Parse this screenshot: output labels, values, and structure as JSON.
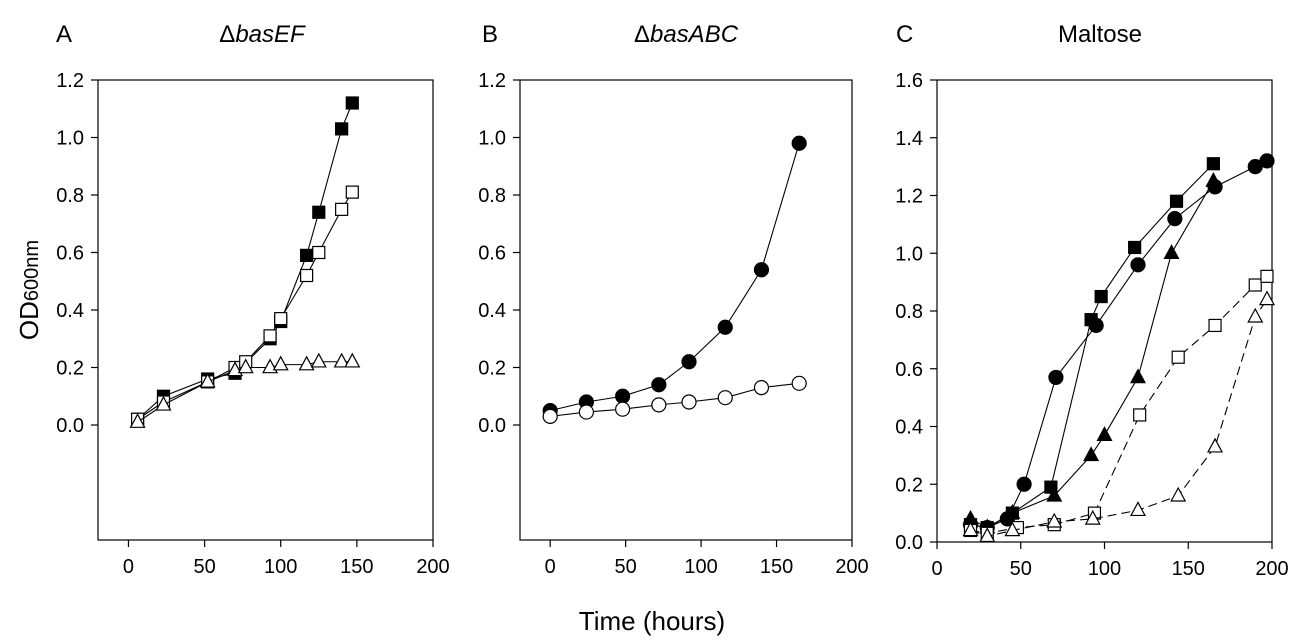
{
  "figure": {
    "ylabel_main": "OD",
    "ylabel_sub": "600nm",
    "xlabel": "Time (hours)"
  },
  "chart_data": [
    {
      "type": "line",
      "panel_letter": "A",
      "title_prefix": "Δ",
      "title_italic": "basEF",
      "xlabel": "Time (hours)",
      "ylabel": "OD600nm",
      "xlim": [
        -20,
        200
      ],
      "ylim": [
        -0.4,
        1.2
      ],
      "xticks": [
        0,
        50,
        100,
        150,
        200
      ],
      "xtick_labels": [
        "0",
        "50",
        "100",
        "150",
        "200"
      ],
      "yticks": [
        0.0,
        0.2,
        0.4,
        0.6,
        0.8,
        1.0,
        1.2
      ],
      "ytick_labels": [
        "0.0",
        "0.2",
        "0.4",
        "0.6",
        "0.8",
        "1.0",
        "1.2"
      ],
      "grid": false,
      "series": [
        {
          "marker": "square",
          "fill": "filled",
          "line": "solid",
          "x": [
            6,
            23,
            52,
            70,
            93,
            100,
            117,
            125,
            140,
            147
          ],
          "y": [
            0.02,
            0.1,
            0.16,
            0.18,
            0.3,
            0.36,
            0.59,
            0.74,
            1.03,
            1.12
          ]
        },
        {
          "marker": "square",
          "fill": "open",
          "line": "solid",
          "x": [
            6,
            23,
            52,
            70,
            77,
            93,
            100,
            117,
            125,
            140,
            147
          ],
          "y": [
            0.02,
            0.08,
            0.15,
            0.2,
            0.22,
            0.31,
            0.37,
            0.52,
            0.6,
            0.75,
            0.81
          ]
        },
        {
          "marker": "triangle",
          "fill": "open",
          "line": "solid",
          "x": [
            6,
            23,
            52,
            70,
            77,
            93,
            100,
            117,
            125,
            140,
            147
          ],
          "y": [
            0.01,
            0.07,
            0.15,
            0.19,
            0.2,
            0.2,
            0.21,
            0.21,
            0.22,
            0.22,
            0.22
          ]
        }
      ]
    },
    {
      "type": "line",
      "panel_letter": "B",
      "title_prefix": "Δ",
      "title_italic": "basABC",
      "xlabel": "Time (hours)",
      "ylabel": "OD600nm",
      "xlim": [
        -20,
        200
      ],
      "ylim": [
        -0.4,
        1.2
      ],
      "xticks": [
        0,
        50,
        100,
        150,
        200
      ],
      "xtick_labels": [
        "0",
        "50",
        "100",
        "150",
        "200"
      ],
      "yticks": [
        0.0,
        0.2,
        0.4,
        0.6,
        0.8,
        1.0,
        1.2
      ],
      "ytick_labels": [
        "0.0",
        "0.2",
        "0.4",
        "0.6",
        "0.8",
        "1.0",
        "1.2"
      ],
      "grid": false,
      "series": [
        {
          "marker": "circle",
          "fill": "filled",
          "line": "solid",
          "x": [
            0,
            24,
            48,
            72,
            92,
            116,
            140,
            165
          ],
          "y": [
            0.05,
            0.08,
            0.1,
            0.14,
            0.22,
            0.34,
            0.54,
            0.98
          ]
        },
        {
          "marker": "circle",
          "fill": "open",
          "line": "solid",
          "x": [
            0,
            24,
            48,
            72,
            92,
            116,
            140,
            165
          ],
          "y": [
            0.03,
            0.045,
            0.055,
            0.07,
            0.08,
            0.095,
            0.13,
            0.145
          ]
        }
      ]
    },
    {
      "type": "line",
      "panel_letter": "C",
      "title_prefix": "",
      "title_italic": "",
      "title_text": "Maltose",
      "xlabel": "Time (hours)",
      "ylabel": "OD600nm",
      "xlim": [
        0,
        200
      ],
      "ylim": [
        0,
        1.6
      ],
      "xticks": [
        0,
        50,
        100,
        150,
        200
      ],
      "xtick_labels": [
        "0",
        "50",
        "100",
        "150",
        "200"
      ],
      "yticks": [
        0.0,
        0.2,
        0.4,
        0.6,
        0.8,
        1.0,
        1.2,
        1.4,
        1.6
      ],
      "ytick_labels": [
        "0.0",
        "0.2",
        "0.4",
        "0.6",
        "0.8",
        "1.0",
        "1.2",
        "1.4",
        "1.6"
      ],
      "grid": false,
      "series": [
        {
          "marker": "circle",
          "fill": "filled",
          "line": "solid",
          "x": [
            20,
            30,
            42,
            52,
            71,
            95,
            120,
            142,
            166,
            190,
            197
          ],
          "y": [
            0.06,
            0.05,
            0.08,
            0.2,
            0.57,
            0.75,
            0.96,
            1.12,
            1.23,
            1.3,
            1.32
          ]
        },
        {
          "marker": "square",
          "fill": "filled",
          "line": "solid",
          "x": [
            20,
            30,
            45,
            68,
            92,
            98,
            118,
            143,
            165
          ],
          "y": [
            0.06,
            0.05,
            0.1,
            0.19,
            0.77,
            0.85,
            1.02,
            1.18,
            1.31
          ]
        },
        {
          "marker": "triangle",
          "fill": "filled",
          "line": "solid",
          "x": [
            20,
            30,
            45,
            70,
            92,
            100,
            120,
            140,
            165
          ],
          "y": [
            0.08,
            0.05,
            0.1,
            0.16,
            0.3,
            0.37,
            0.57,
            1.0,
            1.25
          ]
        },
        {
          "marker": "square",
          "fill": "open",
          "line": "dashed",
          "x": [
            20,
            30,
            48,
            70,
            94,
            121,
            144,
            166,
            190,
            197
          ],
          "y": [
            0.04,
            0.03,
            0.05,
            0.06,
            0.1,
            0.44,
            0.64,
            0.75,
            0.89,
            0.92
          ]
        },
        {
          "marker": "triangle",
          "fill": "open",
          "line": "dashed",
          "x": [
            20,
            30,
            45,
            70,
            93,
            120,
            144,
            166,
            190,
            197
          ],
          "y": [
            0.04,
            0.02,
            0.04,
            0.07,
            0.08,
            0.11,
            0.16,
            0.33,
            0.78,
            0.84
          ]
        }
      ]
    }
  ]
}
